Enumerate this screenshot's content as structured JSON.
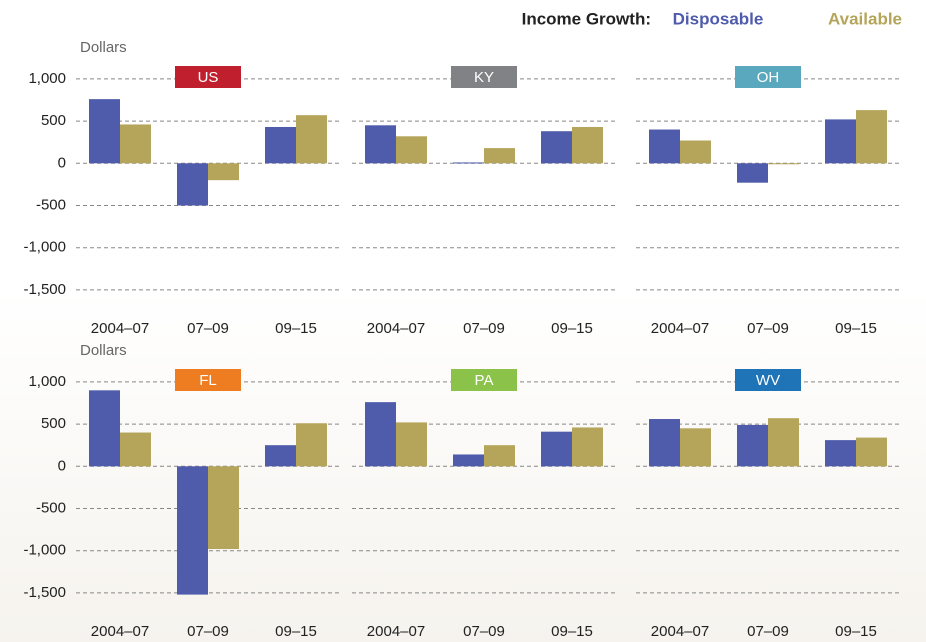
{
  "header": {
    "title": "Income Growth:"
  },
  "chart_data": [
    {
      "type": "bar",
      "title": "US",
      "title_color": "#c0202e",
      "ylabel": "Dollars",
      "categories": [
        "2004–07",
        "07–09",
        "09–15"
      ],
      "series": [
        {
          "name": "Disposable",
          "color": "#4f5bab",
          "values": [
            760,
            -500,
            430
          ]
        },
        {
          "name": "Available",
          "color": "#b5a55a",
          "values": [
            460,
            -200,
            570
          ]
        }
      ],
      "ylim": [
        -1750,
        1200
      ],
      "yticks": [
        {
          "value": -1500,
          "label": "-1,500"
        },
        {
          "value": -1000,
          "label": "-1,000"
        },
        -500,
        0,
        500,
        {
          "value": 1000,
          "label": "1,000"
        }
      ],
      "grid": true
    },
    {
      "type": "bar",
      "title": "KY",
      "title_color": "#808285",
      "categories": [
        "2004–07",
        "07–09",
        "09–15"
      ],
      "series": [
        {
          "name": "Disposable",
          "color": "#4f5bab",
          "values": [
            450,
            10,
            380
          ]
        },
        {
          "name": "Available",
          "color": "#b5a55a",
          "values": [
            320,
            180,
            430
          ]
        }
      ],
      "ylim": [
        -1750,
        1200
      ],
      "yticks": [
        -1500,
        -1000,
        -500,
        0,
        500,
        1000
      ],
      "grid": true
    },
    {
      "type": "bar",
      "title": "OH",
      "title_color": "#5aa8bd",
      "categories": [
        "2004–07",
        "07–09",
        "09–15"
      ],
      "series": [
        {
          "name": "Disposable",
          "color": "#4f5bab",
          "values": [
            400,
            -230,
            520
          ]
        },
        {
          "name": "Available",
          "color": "#b5a55a",
          "values": [
            270,
            -10,
            630
          ]
        }
      ],
      "ylim": [
        -1750,
        1200
      ],
      "yticks": [
        -1500,
        -1000,
        -500,
        0,
        500,
        1000
      ],
      "grid": true
    },
    {
      "type": "bar",
      "title": "FL",
      "title_color": "#ee7d22",
      "ylabel": "Dollars",
      "categories": [
        "2004–07",
        "07–09",
        "09–15"
      ],
      "series": [
        {
          "name": "Disposable",
          "color": "#4f5bab",
          "values": [
            900,
            -1520,
            250
          ]
        },
        {
          "name": "Available",
          "color": "#b5a55a",
          "values": [
            400,
            -980,
            510
          ]
        }
      ],
      "ylim": [
        -1750,
        1200
      ],
      "yticks": [
        {
          "value": -1500,
          "label": "-1,500"
        },
        {
          "value": -1000,
          "label": "-1,000"
        },
        -500,
        0,
        500,
        {
          "value": 1000,
          "label": "1,000"
        }
      ],
      "grid": true
    },
    {
      "type": "bar",
      "title": "PA",
      "title_color": "#8bc34a",
      "categories": [
        "2004–07",
        "07–09",
        "09–15"
      ],
      "series": [
        {
          "name": "Disposable",
          "color": "#4f5bab",
          "values": [
            760,
            140,
            410
          ]
        },
        {
          "name": "Available",
          "color": "#b5a55a",
          "values": [
            520,
            250,
            460
          ]
        }
      ],
      "ylim": [
        -1750,
        1200
      ],
      "yticks": [
        -1500,
        -1000,
        -500,
        0,
        500,
        1000
      ],
      "grid": true
    },
    {
      "type": "bar",
      "title": "WV",
      "title_color": "#1f73b7",
      "categories": [
        "2004–07",
        "07–09",
        "09–15"
      ],
      "series": [
        {
          "name": "Disposable",
          "color": "#4f5bab",
          "values": [
            560,
            490,
            310
          ]
        },
        {
          "name": "Available",
          "color": "#b5a55a",
          "values": [
            450,
            570,
            340
          ]
        }
      ],
      "ylim": [
        -1750,
        1200
      ],
      "yticks": [
        -1500,
        -1000,
        -500,
        0,
        500,
        1000
      ],
      "grid": true
    }
  ]
}
